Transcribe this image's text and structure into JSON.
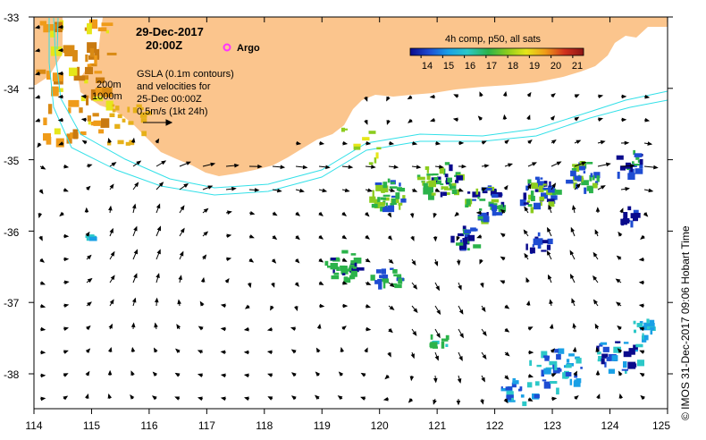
{
  "header": {
    "date": "29-Dec-2017",
    "time": "20:00Z",
    "argo_label": "Argo"
  },
  "legend": {
    "title": "4h comp, p50, all sats",
    "ticks": [
      "14",
      "15",
      "16",
      "17",
      "18",
      "19",
      "20",
      "21"
    ],
    "min": 13.5,
    "max": 21.5
  },
  "annotations": {
    "contour_200": "200m",
    "contour_1000": "1000m",
    "gsla_line1": "GSLA (0.1m contours)",
    "gsla_line2": "and velocities for",
    "gsla_line3": "25-Dec 00:00Z",
    "scale_label": "0.5m/s (1kt 24h)"
  },
  "axes": {
    "lon_ticks": [
      "114",
      "115",
      "116",
      "117",
      "118",
      "119",
      "120",
      "121",
      "122",
      "123",
      "124",
      "125"
    ],
    "lat_ticks": [
      "-33",
      "-34",
      "-35",
      "-36",
      "-37",
      "-38"
    ]
  },
  "credit": "© IMOS 31-Dec-2017 09:06 Hobart Time",
  "colors": {
    "land": "#fbc58d",
    "isobath": "#33e0e8",
    "arrow": "#000000",
    "argo": "#ff33ff",
    "sst_scale": [
      "#0a0a8c",
      "#1e4cd2",
      "#19a0e6",
      "#2cc8c8",
      "#2bb34a",
      "#8ccc1e",
      "#e6e619",
      "#ef9b19",
      "#d2321e",
      "#8c1414"
    ]
  }
}
